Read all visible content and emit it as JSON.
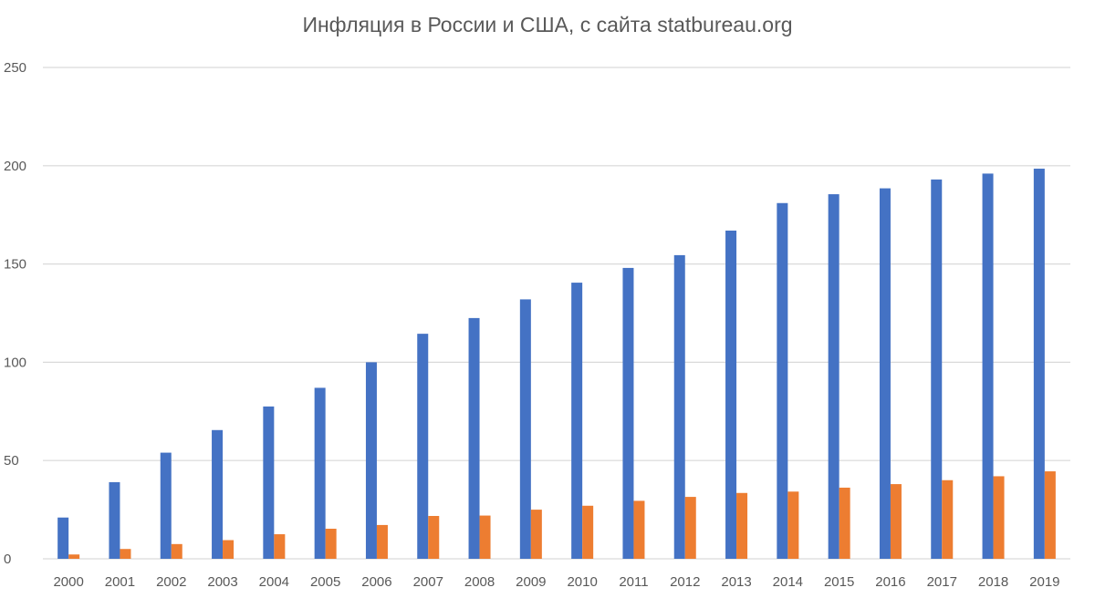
{
  "chart_data": {
    "type": "bar",
    "title": "Инфляция в России и США, с сайта statbureau.org",
    "xlabel": "",
    "ylabel": "",
    "categories": [
      "2000",
      "2001",
      "2002",
      "2003",
      "2004",
      "2005",
      "2006",
      "2007",
      "2008",
      "2009",
      "2010",
      "2011",
      "2012",
      "2013",
      "2014",
      "2015",
      "2016",
      "2017",
      "2018",
      "2019"
    ],
    "series": [
      {
        "color": "#4472C4",
        "values": [
          21,
          39,
          54,
          65.5,
          77.5,
          87,
          100,
          114.5,
          122.5,
          132,
          140.5,
          148,
          154.5,
          167,
          181,
          185.5,
          188.5,
          193,
          196,
          198.5
        ]
      },
      {
        "color": "#ED7D31",
        "values": [
          2.2,
          5,
          7.5,
          9.5,
          12.5,
          15.3,
          17.2,
          21.8,
          22,
          25,
          27,
          29.5,
          31.5,
          33.5,
          34.2,
          36.2,
          38,
          40,
          42,
          44.5
        ]
      }
    ],
    "ylim": [
      0,
      250
    ],
    "yticks": [
      "0",
      "50",
      "100",
      "150",
      "200",
      "250"
    ],
    "grid": true,
    "legend": "none"
  },
  "colors": {
    "grid": "#d9d9d9",
    "text": "#595959"
  }
}
